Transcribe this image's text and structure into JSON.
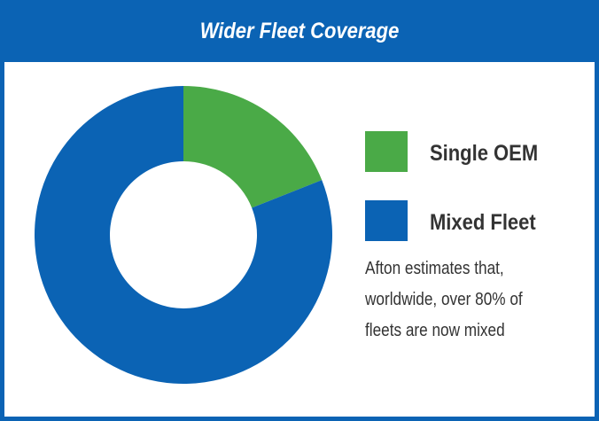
{
  "chart_data": {
    "type": "donut",
    "title": "Wider Fleet Coverage",
    "categories": [
      "Single OEM",
      "Mixed Fleet"
    ],
    "values": [
      19,
      81
    ],
    "colors": [
      "#4aaa47",
      "#0b63b4"
    ],
    "note": [
      "Afton estimates that,",
      "worldwide, over 80% of",
      "fleets are now mixed"
    ]
  }
}
